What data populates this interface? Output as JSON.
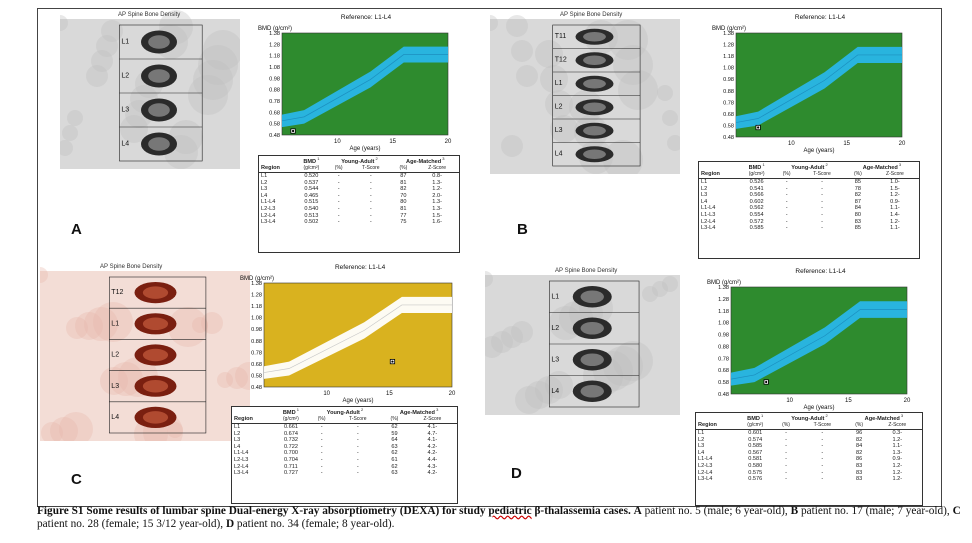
{
  "panels": [
    {
      "letter": "A",
      "xray_title": "AP Spine Bone Density",
      "vertebra_labels": [
        "L1",
        "L2",
        "L3",
        "L4"
      ],
      "chart_title": "Reference: L1-L4",
      "table": {
        "head": {
          "region": "Region",
          "bmd": "BMD",
          "bmd_unit": "(g/cm²)",
          "ya": "Young-Adult",
          "ya_pct": "(%)",
          "ya_t": "T-Score",
          "am": "Age-Matched",
          "am_pct": "(%)",
          "am_z": "Z-Score",
          "sup1": "1",
          "sup2": "2",
          "sup3": "3"
        },
        "rows": [
          {
            "region": "L1",
            "bmd": "0.520",
            "ya_pct": "-",
            "ya_t": "-",
            "am_pct": "87",
            "am_z": "0.8-"
          },
          {
            "region": "L2",
            "bmd": "0.537",
            "ya_pct": "-",
            "ya_t": "-",
            "am_pct": "81",
            "am_z": "1.3-"
          },
          {
            "region": "L3",
            "bmd": "0.544",
            "ya_pct": "-",
            "ya_t": "-",
            "am_pct": "82",
            "am_z": "1.2-"
          },
          {
            "region": "L4",
            "bmd": "0.465",
            "ya_pct": "-",
            "ya_t": "-",
            "am_pct": "70",
            "am_z": "2.0-"
          },
          {
            "region": "L1-L4",
            "bmd": "0.515",
            "ya_pct": "-",
            "ya_t": "-",
            "am_pct": "80",
            "am_z": "1.3-"
          },
          {
            "region": "L2-L3",
            "bmd": "0.540",
            "ya_pct": "-",
            "ya_t": "-",
            "am_pct": "81",
            "am_z": "1.3-"
          },
          {
            "region": "L2-L4",
            "bmd": "0.513",
            "ya_pct": "-",
            "ya_t": "-",
            "am_pct": "77",
            "am_z": "1.5-"
          },
          {
            "region": "L3-L4",
            "bmd": "0.502",
            "ya_pct": "-",
            "ya_t": "-",
            "am_pct": "75",
            "am_z": "1.6-"
          }
        ]
      }
    },
    {
      "letter": "B",
      "xray_title": "AP Spine Bone Density",
      "vertebra_labels": [
        "T11",
        "T12",
        "L1",
        "L2",
        "L3",
        "L4"
      ],
      "chart_title": "Reference: L1-L4",
      "table": {
        "head": {
          "region": "Region",
          "bmd": "BMD",
          "bmd_unit": "(g/cm²)",
          "ya": "Young-Adult",
          "ya_pct": "(%)",
          "ya_t": "T-Score",
          "am": "Age-Matched",
          "am_pct": "(%)",
          "am_z": "Z-Score",
          "sup1": "1",
          "sup2": "2",
          "sup3": "3"
        },
        "rows": [
          {
            "region": "L1",
            "bmd": "0.526",
            "ya_pct": "-",
            "ya_t": "-",
            "am_pct": "85",
            "am_z": "1.0-"
          },
          {
            "region": "L2",
            "bmd": "0.541",
            "ya_pct": "-",
            "ya_t": "-",
            "am_pct": "78",
            "am_z": "1.5-"
          },
          {
            "region": "L3",
            "bmd": "0.566",
            "ya_pct": "-",
            "ya_t": "-",
            "am_pct": "82",
            "am_z": "1.2-"
          },
          {
            "region": "L4",
            "bmd": "0.602",
            "ya_pct": "-",
            "ya_t": "-",
            "am_pct": "87",
            "am_z": "0.9-"
          },
          {
            "region": "L1-L4",
            "bmd": "0.562",
            "ya_pct": "-",
            "ya_t": "-",
            "am_pct": "84",
            "am_z": "1.1-"
          },
          {
            "region": "L1-L3",
            "bmd": "0.554",
            "ya_pct": "-",
            "ya_t": "-",
            "am_pct": "80",
            "am_z": "1.4-"
          },
          {
            "region": "L2-L4",
            "bmd": "0.572",
            "ya_pct": "-",
            "ya_t": "-",
            "am_pct": "83",
            "am_z": "1.2-"
          },
          {
            "region": "L3-L4",
            "bmd": "0.585",
            "ya_pct": "-",
            "ya_t": "-",
            "am_pct": "85",
            "am_z": "1.1-"
          }
        ]
      }
    },
    {
      "letter": "C",
      "xray_title": "AP Spine Bone Density",
      "vertebra_labels": [
        "T12",
        "L1",
        "L2",
        "L3",
        "L4"
      ],
      "chart_title": "Reference: L1-L4",
      "table": {
        "head": {
          "region": "Region",
          "bmd": "BMD",
          "bmd_unit": "(g/cm²)",
          "ya": "Young-Adult",
          "ya_pct": "(%)",
          "ya_t": "T-Score",
          "am": "Age-Matched",
          "am_pct": "(%)",
          "am_z": "Z-Score",
          "sup1": "1",
          "sup2": "2",
          "sup3": "3"
        },
        "rows": [
          {
            "region": "L1",
            "bmd": "0.661",
            "ya_pct": "-",
            "ya_t": "-",
            "am_pct": "62",
            "am_z": "4.1-"
          },
          {
            "region": "L2",
            "bmd": "0.674",
            "ya_pct": "-",
            "ya_t": "-",
            "am_pct": "59",
            "am_z": "4.7-"
          },
          {
            "region": "L3",
            "bmd": "0.732",
            "ya_pct": "-",
            "ya_t": "-",
            "am_pct": "64",
            "am_z": "4.1-"
          },
          {
            "region": "L4",
            "bmd": "0.722",
            "ya_pct": "-",
            "ya_t": "-",
            "am_pct": "63",
            "am_z": "4.2-"
          },
          {
            "region": "L1-L4",
            "bmd": "0.700",
            "ya_pct": "-",
            "ya_t": "-",
            "am_pct": "62",
            "am_z": "4.2-"
          },
          {
            "region": "L2-L3",
            "bmd": "0.704",
            "ya_pct": "-",
            "ya_t": "-",
            "am_pct": "61",
            "am_z": "4.4-"
          },
          {
            "region": "L2-L4",
            "bmd": "0.711",
            "ya_pct": "-",
            "ya_t": "-",
            "am_pct": "62",
            "am_z": "4.3-"
          },
          {
            "region": "L3-L4",
            "bmd": "0.727",
            "ya_pct": "-",
            "ya_t": "-",
            "am_pct": "63",
            "am_z": "4.2-"
          }
        ]
      }
    },
    {
      "letter": "D",
      "xray_title": "AP Spine Bone Density",
      "vertebra_labels": [
        "L1",
        "L2",
        "L3",
        "L4"
      ],
      "chart_title": "Reference: L1-L4",
      "table": {
        "head": {
          "region": "Region",
          "bmd": "BMD",
          "bmd_unit": "(g/cm²)",
          "ya": "Young-Adult",
          "ya_pct": "(%)",
          "ya_t": "T-Score",
          "am": "Age-Matched",
          "am_pct": "(%)",
          "am_z": "Z-Score",
          "sup1": "1",
          "sup2": "2",
          "sup3": "3"
        },
        "rows": [
          {
            "region": "L1",
            "bmd": "0.601",
            "ya_pct": "-",
            "ya_t": "-",
            "am_pct": "96",
            "am_z": "0.3-"
          },
          {
            "region": "L2",
            "bmd": "0.574",
            "ya_pct": "-",
            "ya_t": "-",
            "am_pct": "82",
            "am_z": "1.2-"
          },
          {
            "region": "L3",
            "bmd": "0.585",
            "ya_pct": "-",
            "ya_t": "-",
            "am_pct": "84",
            "am_z": "1.1-"
          },
          {
            "region": "L4",
            "bmd": "0.567",
            "ya_pct": "-",
            "ya_t": "-",
            "am_pct": "82",
            "am_z": "1.3-"
          },
          {
            "region": "L1-L4",
            "bmd": "0.581",
            "ya_pct": "-",
            "ya_t": "-",
            "am_pct": "86",
            "am_z": "0.9-"
          },
          {
            "region": "L2-L3",
            "bmd": "0.580",
            "ya_pct": "-",
            "ya_t": "-",
            "am_pct": "83",
            "am_z": "1.2-"
          },
          {
            "region": "L2-L4",
            "bmd": "0.575",
            "ya_pct": "-",
            "ya_t": "-",
            "am_pct": "83",
            "am_z": "1.2-"
          },
          {
            "region": "L3-L4",
            "bmd": "0.576",
            "ya_pct": "-",
            "ya_t": "-",
            "am_pct": "83",
            "am_z": "1.2-"
          }
        ]
      }
    }
  ],
  "chart_data": [
    {
      "type": "line",
      "title": "Reference: L1-L4",
      "ylabel": "BMD (g/cm²)",
      "xlabel": "Age (years)",
      "xlim": [
        5,
        20
      ],
      "ylim": [
        0.48,
        1.38
      ],
      "yticks": [
        "1.38",
        "1.28",
        "1.18",
        "1.08",
        "0.98",
        "0.88",
        "0.78",
        "0.68",
        "0.58",
        "0.48"
      ],
      "xticks": [
        "10",
        "15",
        "20"
      ],
      "background": "#2e8b2e",
      "band_color": "#29b6e8",
      "reference_band": {
        "x": [
          5,
          7,
          13,
          16,
          20
        ],
        "lower": [
          0.55,
          0.58,
          0.9,
          1.12,
          1.12
        ],
        "upper": [
          0.66,
          0.7,
          1.04,
          1.26,
          1.26
        ]
      },
      "patient_point": {
        "age": 6,
        "bmd": 0.515
      }
    },
    {
      "type": "line",
      "title": "Reference: L1-L4",
      "ylabel": "BMD (g/cm²)",
      "xlabel": "Age (years)",
      "xlim": [
        5,
        20
      ],
      "ylim": [
        0.48,
        1.38
      ],
      "yticks": [
        "1.38",
        "1.28",
        "1.18",
        "1.08",
        "0.98",
        "0.88",
        "0.78",
        "0.68",
        "0.58",
        "0.48"
      ],
      "xticks": [
        "10",
        "15",
        "20"
      ],
      "background": "#2e8b2e",
      "band_color": "#29b6e8",
      "reference_band": {
        "x": [
          5,
          7,
          13,
          16,
          20
        ],
        "lower": [
          0.55,
          0.58,
          0.9,
          1.12,
          1.12
        ],
        "upper": [
          0.66,
          0.7,
          1.04,
          1.26,
          1.26
        ]
      },
      "patient_point": {
        "age": 7,
        "bmd": 0.562
      }
    },
    {
      "type": "line",
      "title": "Reference: L1-L4",
      "ylabel": "BMD (g/cm²)",
      "xlabel": "Age (years)",
      "xlim": [
        5,
        20
      ],
      "ylim": [
        0.48,
        1.38
      ],
      "yticks": [
        "1.38",
        "1.28",
        "1.18",
        "1.08",
        "0.98",
        "0.88",
        "0.78",
        "0.68",
        "0.58",
        "0.48"
      ],
      "xticks": [
        "10",
        "15",
        "20"
      ],
      "background": "#d9b21f",
      "band_color": "#ffffff",
      "reference_band": {
        "x": [
          5,
          7,
          13,
          16,
          20
        ],
        "lower": [
          0.55,
          0.58,
          0.9,
          1.12,
          1.12
        ],
        "upper": [
          0.66,
          0.7,
          1.04,
          1.26,
          1.26
        ]
      },
      "patient_point": {
        "age": 15.25,
        "bmd": 0.7
      }
    },
    {
      "type": "line",
      "title": "Reference: L1-L4",
      "ylabel": "BMD (g/cm²)",
      "xlabel": "Age (years)",
      "xlim": [
        5,
        20
      ],
      "ylim": [
        0.48,
        1.38
      ],
      "yticks": [
        "1.38",
        "1.28",
        "1.18",
        "1.08",
        "0.98",
        "0.88",
        "0.78",
        "0.68",
        "0.58",
        "0.48"
      ],
      "xticks": [
        "10",
        "15",
        "20"
      ],
      "background": "#2e8b2e",
      "band_color": "#29b6e8",
      "reference_band": {
        "x": [
          5,
          7,
          13,
          16,
          20
        ],
        "lower": [
          0.55,
          0.58,
          0.9,
          1.12,
          1.12
        ],
        "upper": [
          0.66,
          0.7,
          1.04,
          1.26,
          1.26
        ]
      },
      "patient_point": {
        "age": 8,
        "bmd": 0.581
      }
    }
  ],
  "caption": {
    "label": "Figure S1",
    "bold_text": " Some results of lumbar spine Dual-energy X-ray absorptiometry (DEXA) for study ",
    "wavy_word": "pediatric",
    "bold_tail": " β-thalassemia cases.",
    "a_letter": "A",
    "a_text": " patient no. 5 (male; 6 year-old), ",
    "b_letter": "B",
    "b_text": " patient no. 17 (male; 7 year-old), ",
    "c_letter": "C",
    "c_text": " patient no. 28 (female; 15 3/12 year-old), ",
    "d_letter": "D",
    "d_text": " patient no. 34 (female; 8 year-old)."
  }
}
